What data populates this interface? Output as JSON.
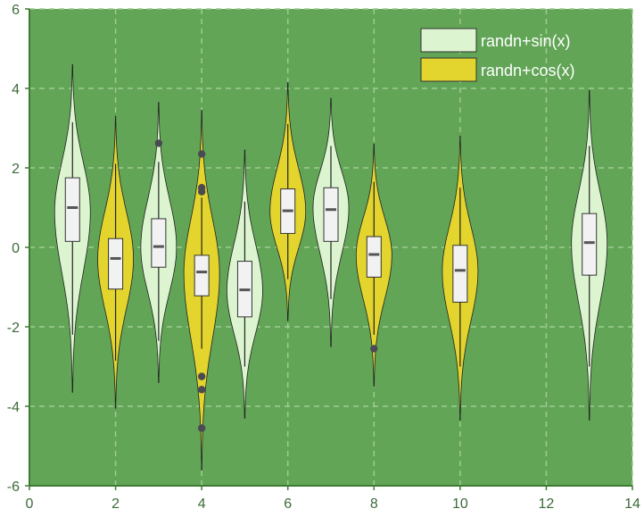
{
  "chart_data": {
    "type": "violin",
    "title": "",
    "xlabel": "",
    "ylabel": "",
    "xlim": [
      0,
      14
    ],
    "ylim": [
      -6,
      6
    ],
    "xticks": [
      0,
      2,
      4,
      6,
      8,
      10,
      12,
      14
    ],
    "yticks": [
      -6,
      -4,
      -2,
      0,
      2,
      4,
      6
    ],
    "grid": true,
    "legend_position": "top-right",
    "colors": {
      "background": "#62a557",
      "grid": "#9fcb92",
      "axis": "#3e7b33",
      "tick_text": "#3d6b3a",
      "box_fill": "#f2f2f2",
      "median": "#555555",
      "outlier": "#4a4a52"
    },
    "series": [
      {
        "name": "randn+sin(x)",
        "color": "#dcf5d0",
        "violins": [
          {
            "x": 1,
            "min": -3.65,
            "max": 4.6,
            "q1": 0.15,
            "median": 1.0,
            "q3": 1.75,
            "whisker_low": -2.2,
            "whisker_high": 3.15,
            "mode": 0.9,
            "outliers": []
          },
          {
            "x": 3,
            "min": -3.4,
            "max": 3.65,
            "q1": -0.5,
            "median": 0.02,
            "q3": 0.72,
            "whisker_low": -2.35,
            "whisker_high": 2.15,
            "mode": 0.0,
            "outliers": [
              2.62
            ]
          },
          {
            "x": 5,
            "min": -4.3,
            "max": 2.45,
            "q1": -1.75,
            "median": -1.07,
            "q3": -0.35,
            "whisker_low": -3.0,
            "whisker_high": 1.15,
            "mode": -1.1,
            "outliers": []
          },
          {
            "x": 7,
            "min": -2.5,
            "max": 3.75,
            "q1": 0.15,
            "median": 0.95,
            "q3": 1.5,
            "whisker_low": -1.3,
            "whisker_high": 2.55,
            "mode": 1.0,
            "outliers": []
          },
          {
            "x": 13,
            "min": -4.35,
            "max": 3.95,
            "q1": -0.7,
            "median": 0.12,
            "q3": 0.85,
            "whisker_low": -3.0,
            "whisker_high": 2.55,
            "mode": 0.1,
            "outliers": []
          }
        ]
      },
      {
        "name": "randn+cos(x)",
        "color": "#e3d42e",
        "violins": [
          {
            "x": 2,
            "min": -4.05,
            "max": 3.3,
            "q1": -1.05,
            "median": -0.28,
            "q3": 0.22,
            "whisker_low": -2.85,
            "whisker_high": 2.1,
            "mode": -0.3,
            "outliers": []
          },
          {
            "x": 4,
            "min": -5.6,
            "max": 3.45,
            "q1": -1.22,
            "median": -0.62,
            "q3": -0.2,
            "whisker_low": -2.55,
            "whisker_high": 1.25,
            "mode": -0.65,
            "outliers": [
              2.35,
              1.5,
              1.4,
              -3.25,
              -3.58,
              -4.55
            ]
          },
          {
            "x": 6,
            "min": -1.85,
            "max": 4.15,
            "q1": 0.35,
            "median": 0.92,
            "q3": 1.47,
            "whisker_low": -0.8,
            "whisker_high": 3.1,
            "mode": 0.9,
            "outliers": []
          },
          {
            "x": 8,
            "min": -3.5,
            "max": 2.6,
            "q1": -0.75,
            "median": -0.18,
            "q3": 0.27,
            "whisker_low": -2.2,
            "whisker_high": 1.65,
            "mode": -0.2,
            "outliers": [
              -2.55
            ]
          },
          {
            "x": 10,
            "min": -4.35,
            "max": 2.8,
            "q1": -1.38,
            "median": -0.58,
            "q3": 0.05,
            "whisker_low": -3.0,
            "whisker_high": 1.5,
            "mode": -0.6,
            "outliers": []
          }
        ]
      }
    ]
  }
}
